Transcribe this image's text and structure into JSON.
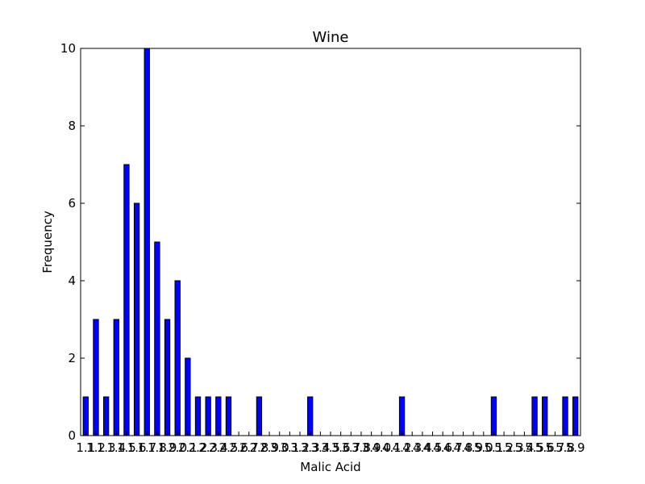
{
  "chart_data": {
    "type": "bar",
    "title": "Wine",
    "xlabel": "Malic Acid",
    "ylabel": "Frequency",
    "ylim": [
      0,
      10
    ],
    "yticks": [
      "0",
      "2",
      "4",
      "6",
      "8",
      "10"
    ],
    "grid": false,
    "bar_color": "#0000ff",
    "categories": [
      "1.1",
      "1.2",
      "1.3",
      "1.4",
      "1.5",
      "1.6",
      "1.7",
      "1.8",
      "1.9",
      "2.0",
      "2.1",
      "2.2",
      "2.3",
      "2.4",
      "2.5",
      "2.6",
      "2.7",
      "2.8",
      "2.9",
      "3.0",
      "3.1",
      "3.2",
      "3.3",
      "3.4",
      "3.5",
      "3.6",
      "3.7",
      "3.8",
      "3.9",
      "4.0",
      "4.1",
      "4.2",
      "4.3",
      "4.4",
      "4.5",
      "4.6",
      "4.7",
      "4.8",
      "4.9",
      "5.0",
      "5.1",
      "5.2",
      "5.3",
      "5.4",
      "5.5",
      "5.6",
      "5.7",
      "5.8",
      "5.9"
    ],
    "values": [
      1,
      3,
      1,
      3,
      7,
      6,
      10,
      5,
      3,
      4,
      2,
      1,
      1,
      1,
      1,
      0,
      0,
      1,
      0,
      0,
      0,
      0,
      1,
      0,
      0,
      0,
      0,
      0,
      0,
      0,
      0,
      1,
      0,
      0,
      0,
      0,
      0,
      0,
      0,
      0,
      1,
      0,
      0,
      0,
      1,
      1,
      0,
      1,
      1
    ]
  }
}
